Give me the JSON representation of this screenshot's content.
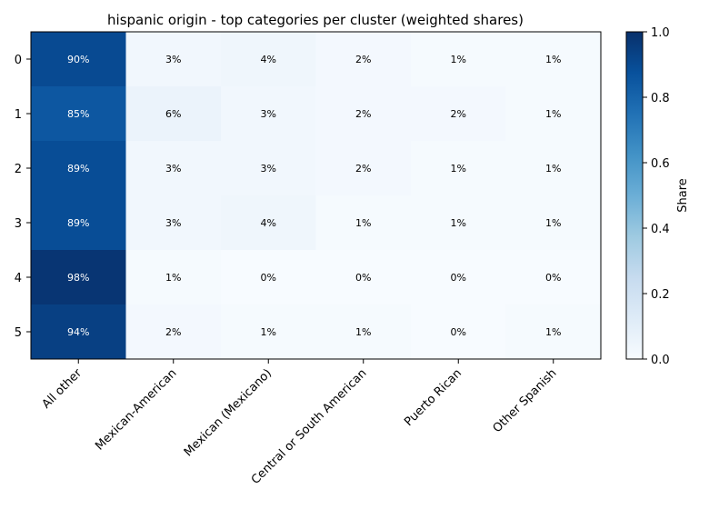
{
  "chart_data": {
    "type": "heatmap",
    "title": "hispanic origin - top categories per cluster (weighted shares)",
    "columns": [
      "All other",
      "Mexican-American",
      "Mexican (Mexicano)",
      "Central or South American",
      "Puerto Rican",
      "Other Spanish"
    ],
    "rows": [
      "0",
      "1",
      "2",
      "3",
      "4",
      "5"
    ],
    "values": [
      [
        0.9,
        0.03,
        0.04,
        0.02,
        0.01,
        0.01
      ],
      [
        0.85,
        0.06,
        0.03,
        0.02,
        0.02,
        0.01
      ],
      [
        0.89,
        0.03,
        0.03,
        0.02,
        0.01,
        0.01
      ],
      [
        0.89,
        0.03,
        0.04,
        0.01,
        0.01,
        0.01
      ],
      [
        0.98,
        0.01,
        0.0,
        0.0,
        0.0,
        0.0
      ],
      [
        0.94,
        0.02,
        0.01,
        0.01,
        0.0,
        0.01
      ]
    ],
    "labels": [
      [
        "90%",
        "3%",
        "4%",
        "2%",
        "1%",
        "1%"
      ],
      [
        "85%",
        "6%",
        "3%",
        "2%",
        "2%",
        "1%"
      ],
      [
        "89%",
        "3%",
        "3%",
        "2%",
        "1%",
        "1%"
      ],
      [
        "89%",
        "3%",
        "4%",
        "1%",
        "1%",
        "1%"
      ],
      [
        "98%",
        "1%",
        "0%",
        "0%",
        "0%",
        "0%"
      ],
      [
        "94%",
        "2%",
        "1%",
        "1%",
        "0%",
        "1%"
      ]
    ],
    "colormap": "Blues",
    "vmin": 0,
    "vmax": 1,
    "colorbar_label": "Share",
    "colorbar_ticks": [
      "0.0",
      "0.2",
      "0.4",
      "0.6",
      "0.8",
      "1.0"
    ]
  }
}
